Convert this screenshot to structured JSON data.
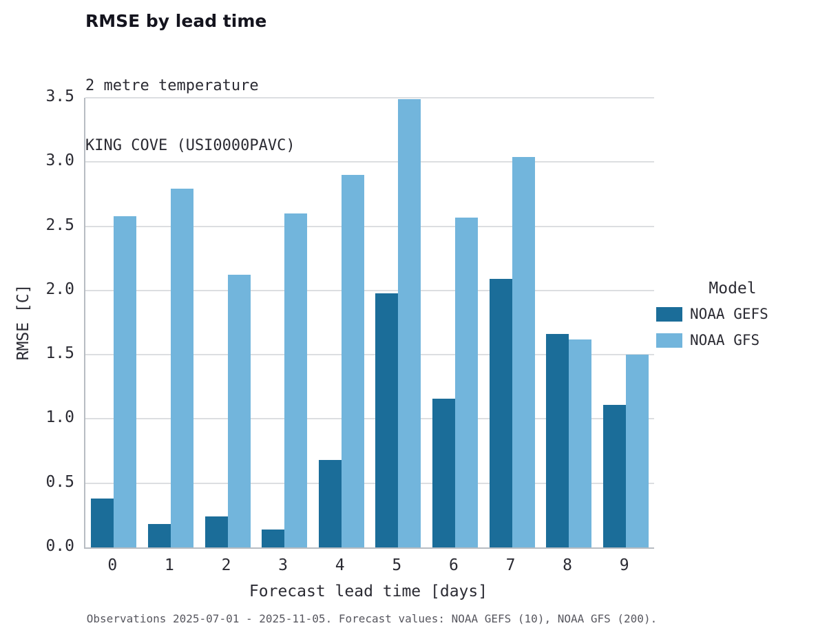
{
  "chart_data": {
    "type": "bar",
    "title": "RMSE by lead time",
    "subtitle_lines": [
      "2 metre temperature",
      "KING COVE (USI0000PAVC)"
    ],
    "xlabel": "Forecast lead time [days]",
    "ylabel": "RMSE [C]",
    "ylim": [
      0,
      3.5
    ],
    "yticks": [
      0.0,
      0.5,
      1.0,
      1.5,
      2.0,
      2.5,
      3.0,
      3.5
    ],
    "categories": [
      0,
      1,
      2,
      3,
      4,
      5,
      6,
      7,
      8,
      9
    ],
    "series": [
      {
        "name": "NOAA GEFS",
        "color": "#1b6d99",
        "values": [
          0.38,
          0.18,
          0.24,
          0.14,
          0.68,
          1.98,
          1.16,
          2.09,
          1.66,
          1.11
        ]
      },
      {
        "name": "NOAA GFS",
        "color": "#72b5dc",
        "values": [
          2.58,
          2.79,
          2.12,
          2.6,
          2.9,
          3.49,
          2.57,
          3.04,
          1.62,
          1.5
        ]
      }
    ],
    "grid": "horizontal",
    "legend_position": "right",
    "legend_title": "Model",
    "caption": "Observations 2025-07-01 - 2025-11-05. Forecast values: NOAA GEFS (10), NOAA GFS (200)."
  }
}
